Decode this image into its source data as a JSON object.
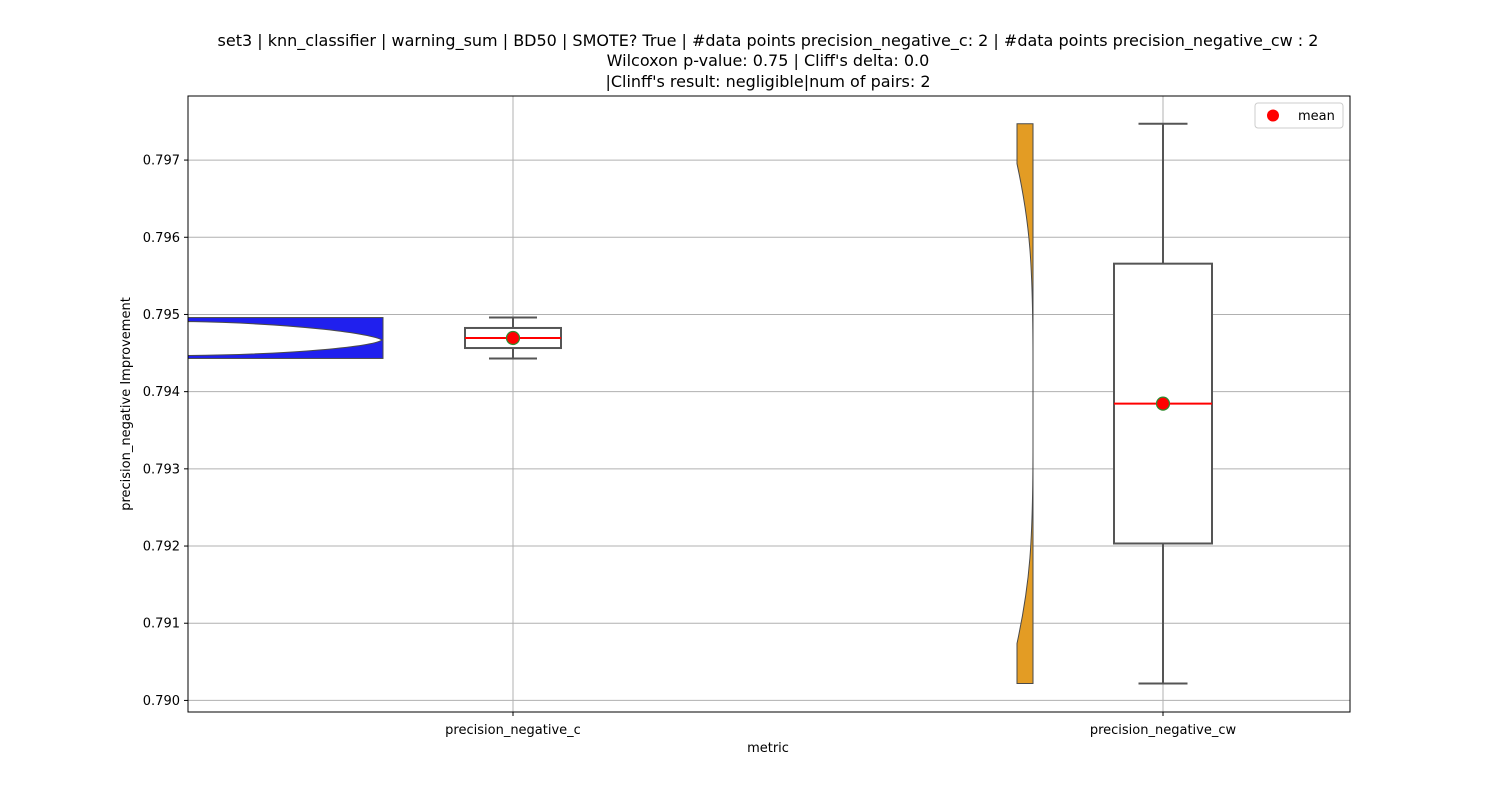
{
  "chart_data": {
    "type": "box_violin",
    "title": [
      "set3 | knn_classifier | warning_sum | BD50 | SMOTE? True | #data points precision_negative_c: 2 | #data points precision_negative_cw : 2",
      "Wilcoxon p-value: 0.75 | Cliff's delta: 0.0",
      "|Clinff's result: negligible|num of pairs: 2"
    ],
    "xlabel": "metric",
    "ylabel": "precision_negative Improvement",
    "categories": [
      "precision_negative_c",
      "precision_negative_cw"
    ],
    "ylim": [
      0.78985,
      0.79783
    ],
    "yticks": [
      0.79,
      0.791,
      0.792,
      0.793,
      0.794,
      0.795,
      0.796,
      0.797
    ],
    "ytick_labels": [
      "0.790",
      "0.791",
      "0.792",
      "0.793",
      "0.794",
      "0.795",
      "0.796",
      "0.797"
    ],
    "grid": true,
    "legend": {
      "position": "top-right",
      "entries": [
        "mean"
      ]
    },
    "series": [
      {
        "category": "precision_negative_c",
        "values": [
          0.79443,
          0.79496
        ],
        "min": 0.79443,
        "q1": 0.794565,
        "median": 0.794695,
        "q3": 0.794825,
        "max": 0.79496,
        "mean": 0.794695,
        "violin_color": "#2020ee"
      },
      {
        "category": "precision_negative_cw",
        "values": [
          0.79022,
          0.79747
        ],
        "min": 0.79022,
        "q1": 0.792033,
        "median": 0.793845,
        "q3": 0.795658,
        "max": 0.79747,
        "mean": 0.793845,
        "violin_color": "#e39c24"
      }
    ],
    "colors": {
      "mean_marker": "#ff0000",
      "mean_marker_edge": "#2e8b2e",
      "median_line": "#ff0000",
      "box_edge": "#555555",
      "grid": "#b0b0b0"
    }
  }
}
